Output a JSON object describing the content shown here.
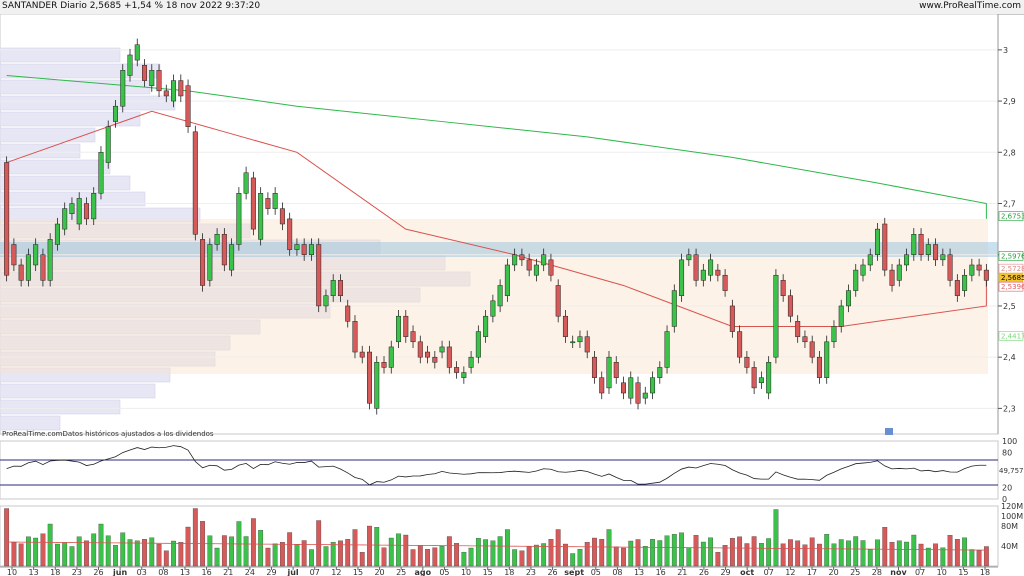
{
  "header": {
    "title": "SANTANDER Diario 2,5685 +1,54 % 18 nov 2022 9:37:20",
    "site": "www.ProRealTime.com"
  },
  "chart_data": {
    "type": "candlestick",
    "note_text": "ProRealTime.comDatos históricos ajustados a los dividendos",
    "price_axis": {
      "ylim": [
        2.25,
        3.07
      ],
      "ticks": [
        "3",
        "2,9",
        "2,8",
        "2,7",
        "2,6",
        "2,5",
        "2,4",
        "2,3"
      ],
      "tick_values": [
        3.0,
        2.9,
        2.8,
        2.7,
        2.6,
        2.5,
        2.4,
        2.3
      ]
    },
    "price_labels": [
      {
        "text": "2,6753",
        "value": 2.6753,
        "color": "#23a23a"
      },
      {
        "text": "2,5976",
        "value": 2.5976,
        "color": "#23a23a"
      },
      {
        "text": "2,5728",
        "value": 2.5728,
        "color": "#e08a8a"
      },
      {
        "text": "2,5685",
        "value": 2.5685,
        "color": "#e6b800"
      },
      {
        "text": "2,5396",
        "value": 2.5396,
        "color": "#e06060"
      },
      {
        "text": "2,4417",
        "value": 2.4417,
        "color": "#7ad97a"
      }
    ],
    "x_labels": [
      "10",
      "13",
      "18",
      "23",
      "26",
      "jun",
      "03",
      "08",
      "13",
      "16",
      "21",
      "24",
      "29",
      "jul",
      "07",
      "12",
      "15",
      "20",
      "25",
      "ago",
      "05",
      "10",
      "15",
      "18",
      "23",
      "26",
      "sept",
      "05",
      "08",
      "13",
      "16",
      "21",
      "26",
      "29",
      "oct",
      "07",
      "12",
      "17",
      "20",
      "25",
      "28",
      "nov",
      "07",
      "10",
      "15",
      "18"
    ],
    "candles": [
      [
        2.78,
        2.56
      ],
      [
        2.62,
        2.58
      ],
      [
        2.58,
        2.55
      ],
      [
        2.55,
        2.6
      ],
      [
        2.58,
        2.62
      ],
      [
        2.6,
        2.55
      ],
      [
        2.55,
        2.63
      ],
      [
        2.62,
        2.66
      ],
      [
        2.65,
        2.69
      ],
      [
        2.68,
        2.7
      ],
      [
        2.66,
        2.71
      ],
      [
        2.7,
        2.67
      ],
      [
        2.67,
        2.72
      ],
      [
        2.72,
        2.8
      ],
      [
        2.78,
        2.85
      ],
      [
        2.86,
        2.89
      ],
      [
        2.89,
        2.96
      ],
      [
        2.95,
        2.99
      ],
      [
        2.98,
        3.01
      ],
      [
        2.97,
        2.94
      ],
      [
        2.93,
        2.96
      ],
      [
        2.96,
        2.92
      ],
      [
        2.92,
        2.91
      ],
      [
        2.9,
        2.94
      ],
      [
        2.94,
        2.91
      ],
      [
        2.93,
        2.85
      ],
      [
        2.84,
        2.64
      ],
      [
        2.63,
        2.54
      ],
      [
        2.55,
        2.62
      ],
      [
        2.62,
        2.64
      ],
      [
        2.64,
        2.58
      ],
      [
        2.57,
        2.62
      ],
      [
        2.62,
        2.72
      ],
      [
        2.72,
        2.76
      ],
      [
        2.75,
        2.65
      ],
      [
        2.63,
        2.72
      ],
      [
        2.71,
        2.69
      ],
      [
        2.69,
        2.72
      ],
      [
        2.69,
        2.66
      ],
      [
        2.67,
        2.61
      ],
      [
        2.61,
        2.62
      ],
      [
        2.62,
        2.6
      ],
      [
        2.6,
        2.62
      ],
      [
        2.62,
        2.5
      ],
      [
        2.5,
        2.52
      ],
      [
        2.52,
        2.55
      ],
      [
        2.55,
        2.52
      ],
      [
        2.5,
        2.47
      ],
      [
        2.47,
        2.41
      ],
      [
        2.41,
        2.4
      ],
      [
        2.41,
        2.31
      ],
      [
        2.3,
        2.39
      ],
      [
        2.39,
        2.38
      ],
      [
        2.38,
        2.42
      ],
      [
        2.43,
        2.48
      ],
      [
        2.48,
        2.44
      ],
      [
        2.45,
        2.43
      ],
      [
        2.43,
        2.4
      ],
      [
        2.41,
        2.4
      ],
      [
        2.4,
        2.39
      ],
      [
        2.41,
        2.42
      ],
      [
        2.42,
        2.38
      ],
      [
        2.38,
        2.37
      ],
      [
        2.36,
        2.37
      ],
      [
        2.38,
        2.4
      ],
      [
        2.4,
        2.45
      ],
      [
        2.44,
        2.48
      ],
      [
        2.48,
        2.51
      ],
      [
        2.5,
        2.54
      ],
      [
        2.52,
        2.58
      ],
      [
        2.58,
        2.6
      ],
      [
        2.6,
        2.59
      ],
      [
        2.59,
        2.57
      ],
      [
        2.56,
        2.58
      ],
      [
        2.58,
        2.6
      ],
      [
        2.59,
        2.56
      ],
      [
        2.54,
        2.48
      ],
      [
        2.48,
        2.44
      ],
      [
        2.43,
        2.43
      ],
      [
        2.43,
        2.44
      ],
      [
        2.44,
        2.41
      ],
      [
        2.4,
        2.36
      ],
      [
        2.36,
        2.33
      ],
      [
        2.34,
        2.4
      ],
      [
        2.39,
        2.36
      ],
      [
        2.35,
        2.33
      ],
      [
        2.32,
        2.36
      ],
      [
        2.35,
        2.31
      ],
      [
        2.32,
        2.33
      ],
      [
        2.33,
        2.36
      ],
      [
        2.36,
        2.38
      ],
      [
        2.38,
        2.45
      ],
      [
        2.46,
        2.53
      ],
      [
        2.52,
        2.59
      ],
      [
        2.59,
        2.6
      ],
      [
        2.6,
        2.55
      ],
      [
        2.55,
        2.57
      ],
      [
        2.56,
        2.59
      ],
      [
        2.57,
        2.56
      ],
      [
        2.56,
        2.53
      ],
      [
        2.5,
        2.45
      ],
      [
        2.45,
        2.4
      ],
      [
        2.4,
        2.38
      ],
      [
        2.38,
        2.34
      ],
      [
        2.35,
        2.36
      ],
      [
        2.33,
        2.39
      ],
      [
        2.4,
        2.56
      ],
      [
        2.55,
        2.52
      ],
      [
        2.52,
        2.48
      ],
      [
        2.47,
        2.44
      ],
      [
        2.44,
        2.43
      ],
      [
        2.43,
        2.4
      ],
      [
        2.4,
        2.36
      ],
      [
        2.36,
        2.43
      ],
      [
        2.43,
        2.46
      ],
      [
        2.46,
        2.5
      ],
      [
        2.5,
        2.53
      ],
      [
        2.53,
        2.57
      ],
      [
        2.56,
        2.58
      ],
      [
        2.58,
        2.6
      ],
      [
        2.6,
        2.65
      ],
      [
        2.66,
        2.57
      ],
      [
        2.57,
        2.54
      ],
      [
        2.55,
        2.58
      ],
      [
        2.58,
        2.6
      ],
      [
        2.6,
        2.64
      ],
      [
        2.64,
        2.6
      ],
      [
        2.6,
        2.62
      ],
      [
        2.62,
        2.59
      ],
      [
        2.59,
        2.6
      ],
      [
        2.6,
        2.55
      ],
      [
        2.55,
        2.52
      ],
      [
        2.53,
        2.56
      ],
      [
        2.56,
        2.58
      ],
      [
        2.58,
        2.57
      ],
      [
        2.57,
        2.55
      ]
    ],
    "moving_averages": [
      {
        "points": [
          [
            0,
            2.95
          ],
          [
            25,
            2.92
          ],
          [
            40,
            2.89
          ],
          [
            60,
            2.86
          ],
          [
            80,
            2.83
          ],
          [
            100,
            2.79
          ],
          [
            120,
            2.74
          ],
          [
            140,
            2.7
          ],
          [
            155,
            2.67
          ]
        ],
        "color": "#2db84a"
      },
      {
        "points": [
          [
            0,
            2.78
          ],
          [
            20,
            2.88
          ],
          [
            30,
            2.84
          ],
          [
            40,
            2.8
          ],
          [
            55,
            2.65
          ],
          [
            70,
            2.6
          ],
          [
            85,
            2.54
          ],
          [
            100,
            2.46
          ],
          [
            115,
            2.46
          ],
          [
            135,
            2.5
          ],
          [
            155,
            2.55
          ]
        ],
        "color": "#d9534f"
      }
    ],
    "oscillator": {
      "axis_labels": [
        "100",
        "80",
        "20",
        "0"
      ],
      "value_label": "49,757",
      "ylim": [
        0,
        100
      ]
    },
    "volume": {
      "axis_labels": [
        "100M",
        "120M",
        "80M",
        "40M"
      ],
      "ylim": [
        0,
        120
      ]
    }
  }
}
